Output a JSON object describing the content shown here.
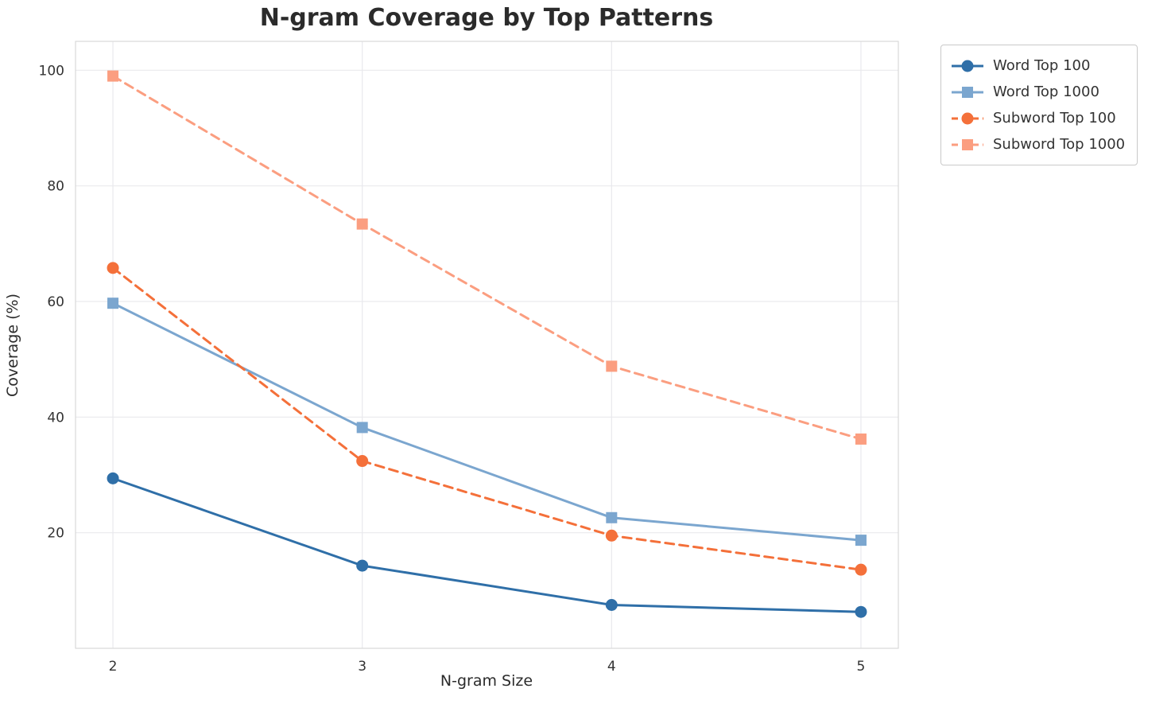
{
  "chart_data": {
    "type": "line",
    "title": "N-gram Coverage by Top Patterns",
    "xlabel": "N-gram Size",
    "ylabel": "Coverage (%)",
    "x": [
      2,
      3,
      4,
      5
    ],
    "xticks": [
      2,
      3,
      4,
      5
    ],
    "yticks": [
      20,
      40,
      60,
      80,
      100
    ],
    "xlim": [
      1.85,
      5.15
    ],
    "ylim": [
      0,
      105
    ],
    "grid": true,
    "legend_position": "outside-top-right",
    "series": [
      {
        "name": "Word Top 100",
        "values": [
          29.4,
          14.3,
          7.5,
          6.3
        ],
        "color": "#2f6fa8",
        "dash": "solid",
        "marker": "circle"
      },
      {
        "name": "Word Top 1000",
        "values": [
          59.7,
          38.2,
          22.6,
          18.7
        ],
        "color": "#7ba6cf",
        "dash": "solid",
        "marker": "square"
      },
      {
        "name": "Subword Top 100",
        "values": [
          65.8,
          32.4,
          19.5,
          13.6
        ],
        "color": "#f4703a",
        "dash": "dashed",
        "marker": "circle"
      },
      {
        "name": "Subword Top 1000",
        "values": [
          99.0,
          73.4,
          48.8,
          36.2
        ],
        "color": "#fb9e80",
        "dash": "dashed",
        "marker": "square"
      }
    ],
    "style": {
      "grid_color": "#e9e9ed",
      "spine_color": "#d9d9d9",
      "background": "#ffffff"
    }
  }
}
